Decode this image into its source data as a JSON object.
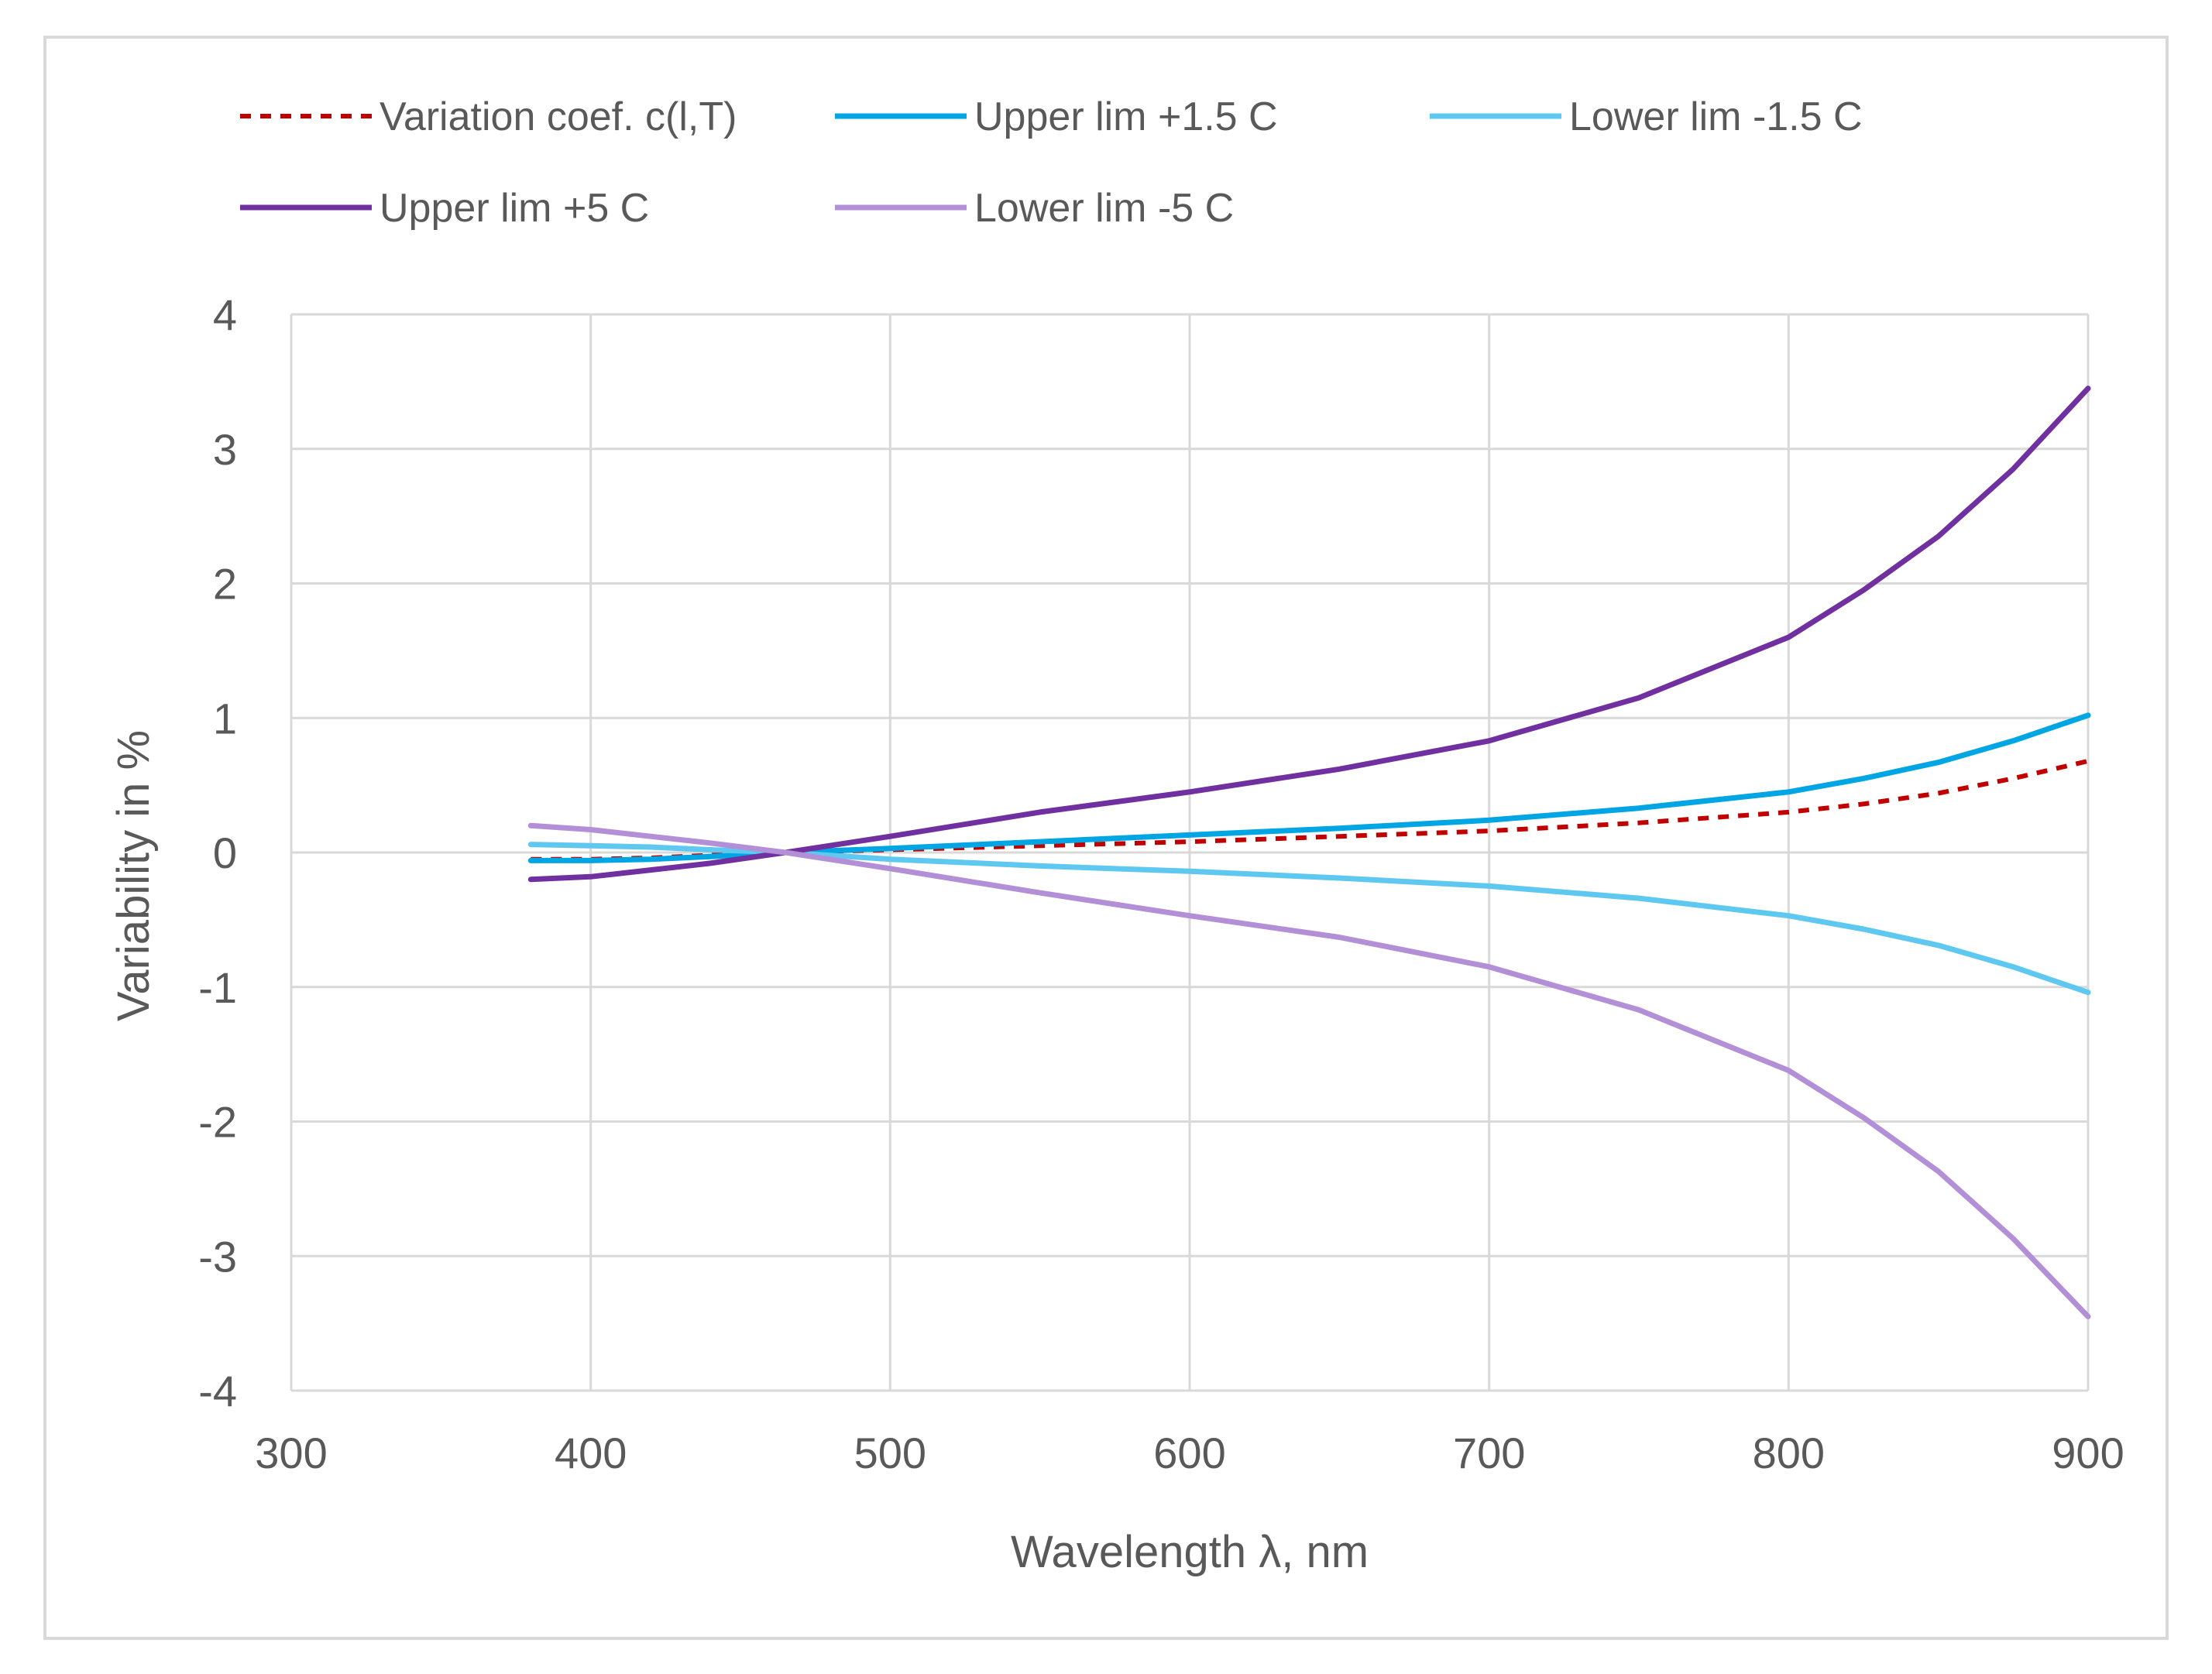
{
  "chart_data": {
    "type": "line",
    "title": "",
    "xlabel": "Wavelength λ, nm",
    "ylabel": "Variability in %",
    "xlim": [
      300,
      900
    ],
    "ylim": [
      -4,
      4
    ],
    "xticks": [
      300,
      400,
      500,
      600,
      700,
      800,
      900
    ],
    "yticks": [
      4,
      3,
      2,
      1,
      0,
      -1,
      -2,
      -3,
      -4
    ],
    "grid": true,
    "legend_position": "top",
    "series": [
      {
        "name": "Variation coef.  c(l,T)",
        "color": "#c00000",
        "style": "dashed",
        "x": [
          380,
          400,
          420,
          440,
          465,
          500,
          550,
          600,
          650,
          700,
          750,
          800,
          825,
          850,
          875,
          900
        ],
        "y": [
          -0.05,
          -0.05,
          -0.04,
          -0.02,
          0.0,
          0.02,
          0.05,
          0.08,
          0.12,
          0.16,
          0.22,
          0.3,
          0.36,
          0.44,
          0.55,
          0.68
        ]
      },
      {
        "name": "Upper lim +1.5 C",
        "color": "#00a5e3",
        "style": "solid",
        "x": [
          380,
          400,
          420,
          440,
          465,
          500,
          550,
          600,
          650,
          700,
          750,
          800,
          825,
          850,
          875,
          900
        ],
        "y": [
          -0.06,
          -0.06,
          -0.05,
          -0.03,
          0.0,
          0.03,
          0.08,
          0.13,
          0.18,
          0.24,
          0.33,
          0.45,
          0.55,
          0.67,
          0.83,
          1.02
        ]
      },
      {
        "name": "Lower lim -1.5 C",
        "color": "#5ec8f0",
        "style": "solid",
        "x": [
          380,
          400,
          420,
          440,
          465,
          500,
          550,
          600,
          650,
          700,
          750,
          800,
          825,
          850,
          875,
          900
        ],
        "y": [
          0.06,
          0.05,
          0.04,
          0.02,
          0.0,
          -0.05,
          -0.1,
          -0.14,
          -0.19,
          -0.25,
          -0.34,
          -0.47,
          -0.57,
          -0.69,
          -0.85,
          -1.04
        ]
      },
      {
        "name": "Upper lim +5 C",
        "color": "#7030a0",
        "style": "solid",
        "x": [
          380,
          400,
          420,
          440,
          465,
          500,
          550,
          600,
          650,
          700,
          750,
          800,
          825,
          850,
          875,
          900
        ],
        "y": [
          -0.2,
          -0.18,
          -0.13,
          -0.08,
          0.0,
          0.12,
          0.3,
          0.45,
          0.62,
          0.83,
          1.15,
          1.6,
          1.95,
          2.35,
          2.85,
          3.45
        ]
      },
      {
        "name": "Lower lim -5 C",
        "color": "#b28fd6",
        "style": "solid",
        "x": [
          380,
          400,
          420,
          440,
          465,
          500,
          550,
          600,
          650,
          700,
          750,
          800,
          825,
          850,
          875,
          900
        ],
        "y": [
          0.2,
          0.17,
          0.12,
          0.07,
          0.0,
          -0.12,
          -0.3,
          -0.47,
          -0.63,
          -0.85,
          -1.17,
          -1.62,
          -1.97,
          -2.37,
          -2.87,
          -3.45
        ]
      }
    ]
  }
}
